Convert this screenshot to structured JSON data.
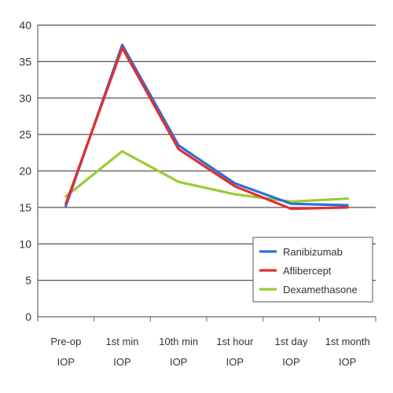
{
  "chart_data": {
    "type": "line",
    "categories": [
      [
        "Pre-op",
        "IOP"
      ],
      [
        "1st min",
        "IOP"
      ],
      [
        "10th min",
        "IOP"
      ],
      [
        "1st hour",
        "IOP"
      ],
      [
        "1st day",
        "IOP"
      ],
      [
        "1st month",
        "IOP"
      ]
    ],
    "series": [
      {
        "name": "Ranibizumab",
        "color": "#2f6fd8",
        "values": [
          15.2,
          37.3,
          23.5,
          18.3,
          15.5,
          15.3
        ]
      },
      {
        "name": "Aflibercept",
        "color": "#e03030",
        "values": [
          15.5,
          36.9,
          23.0,
          17.9,
          14.8,
          15.0
        ]
      },
      {
        "name": "Dexamethasone",
        "color": "#99cc33",
        "values": [
          16.5,
          22.7,
          18.5,
          16.8,
          15.8,
          16.2
        ]
      }
    ],
    "title": "",
    "xlabel": "",
    "ylabel": "",
    "ylim": [
      0,
      40
    ],
    "yticks": [
      0,
      5,
      10,
      15,
      20,
      25,
      30,
      35,
      40
    ],
    "grid": "horizontal",
    "legend": "bottom-right"
  }
}
